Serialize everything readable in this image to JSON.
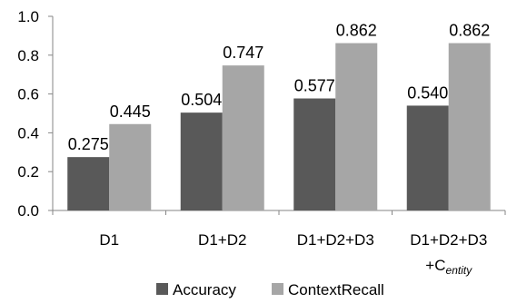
{
  "chart_data": {
    "type": "bar",
    "categories": [
      "D1",
      "D1+D2",
      "D1+D2+D3",
      "D1+D2+D3"
    ],
    "category_extra_line": [
      "",
      "",
      "",
      "+C"
    ],
    "category_extra_subscript": [
      "",
      "",
      "",
      "entity"
    ],
    "series": [
      {
        "name": "Accuracy",
        "values": [
          0.275,
          0.504,
          0.577,
          0.54
        ],
        "labels": [
          "0.275",
          "0.504",
          "0.577",
          "0.540"
        ],
        "color": "#595959"
      },
      {
        "name": "ContextRecall",
        "values": [
          0.445,
          0.747,
          0.862,
          0.862
        ],
        "labels": [
          "0.445",
          "0.747",
          "0.862",
          "0.862"
        ],
        "color": "#a6a6a6"
      }
    ],
    "ylim": [
      0,
      1.0
    ],
    "yticks": [
      "0.0",
      "0.2",
      "0.4",
      "0.6",
      "0.8",
      "1.0"
    ],
    "grid": false,
    "legend": "bottom",
    "title": "",
    "xlabel": "",
    "ylabel": ""
  }
}
